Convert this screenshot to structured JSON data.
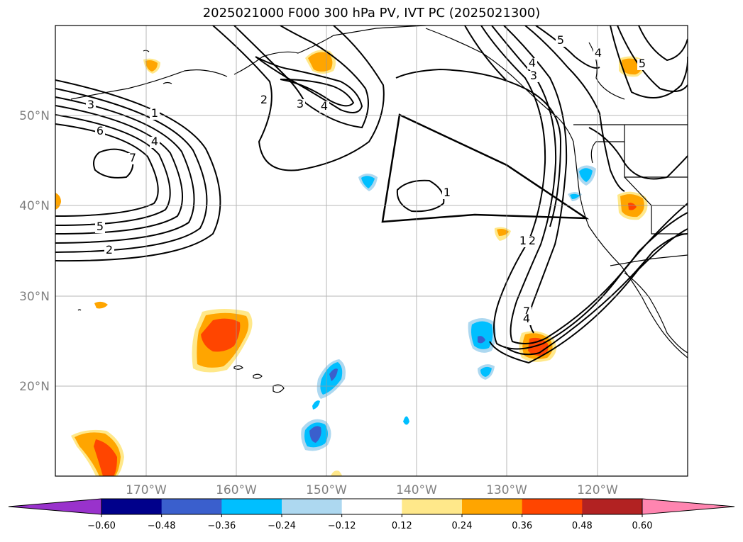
{
  "title": "2025021000 F000 300 hPa PV, IVT PC (2025021300)",
  "map": {
    "lat_labels": [
      "50°N",
      "40°N",
      "30°N",
      "20°N"
    ],
    "lon_labels": [
      "170°W",
      "160°W",
      "150°W",
      "140°W",
      "130°W",
      "120°W"
    ]
  },
  "contour_labels": [
    "3",
    "1",
    "4",
    "6",
    "7",
    "5",
    "2",
    "2",
    "3",
    "4",
    "5",
    "4",
    "4",
    "3",
    "1",
    "1",
    "2",
    "7",
    "4",
    "5"
  ],
  "chart_data": {
    "type": "heatmap",
    "title": "2025021000 F000 300 hPa PV, IVT PC (2025021300)",
    "projection": "cylindrical",
    "lon_range_deg": [
      -180,
      -110
    ],
    "lat_range_deg": [
      10,
      60
    ],
    "lat_ticks": [
      50,
      40,
      30,
      20
    ],
    "lon_ticks": [
      -170,
      -160,
      -150,
      -140,
      -130,
      -120
    ],
    "grid": true,
    "colorbar": {
      "orientation": "horizontal",
      "extend": "both",
      "ticks": [
        "−0.60",
        "−0.48",
        "−0.36",
        "−0.24",
        "−0.12",
        "0.12",
        "0.24",
        "0.36",
        "0.48",
        "0.60"
      ],
      "levels": [
        -0.6,
        -0.48,
        -0.36,
        -0.24,
        -0.12,
        0.12,
        0.24,
        0.36,
        0.48,
        0.6
      ],
      "colors": [
        "#9932cc",
        "#00008b",
        "#3a5fcd",
        "#00bfff",
        "#add8f0",
        "#ffffff",
        "#ffe88a",
        "#ffa500",
        "#ff4500",
        "#b22222",
        "#ff85b0"
      ]
    },
    "ivt_contours": [
      {
        "level": 1,
        "label": "1"
      },
      {
        "level": 2,
        "label": "2"
      },
      {
        "level": 3,
        "label": "3"
      },
      {
        "level": 4,
        "label": "4"
      },
      {
        "level": 5,
        "label": "5"
      },
      {
        "level": 6,
        "label": "6"
      },
      {
        "level": 7,
        "label": "7"
      }
    ],
    "pv_anomalies": [
      {
        "lon": -162,
        "lat": 25.5,
        "value": 0.42
      },
      {
        "lon": -176,
        "lat": 12.5,
        "value": 0.4
      },
      {
        "lon": -126,
        "lat": 24.5,
        "value": 0.4
      },
      {
        "lon": -151,
        "lat": 56.5,
        "value": 0.3
      },
      {
        "lon": -116,
        "lat": 55.5,
        "value": 0.3
      },
      {
        "lon": -116,
        "lat": 40.0,
        "value": 0.32
      },
      {
        "lon": -169,
        "lat": 55.5,
        "value": 0.25
      },
      {
        "lon": -130.5,
        "lat": 37.0,
        "value": 0.26
      },
      {
        "lon": -175,
        "lat": 29.0,
        "value": 0.22
      },
      {
        "lon": -133,
        "lat": 25.5,
        "value": -0.33
      },
      {
        "lon": -150,
        "lat": 20.5,
        "value": -0.3
      },
      {
        "lon": -152,
        "lat": 14.5,
        "value": -0.36
      },
      {
        "lon": -146,
        "lat": 42.5,
        "value": -0.28
      },
      {
        "lon": -121,
        "lat": 43.5,
        "value": -0.28
      },
      {
        "lon": -132,
        "lat": 21.5,
        "value": -0.26
      }
    ],
    "polygon": [
      [
        -142,
        50
      ],
      [
        -130,
        44.5
      ],
      [
        -121.5,
        38.5
      ],
      [
        -139.5,
        38.8
      ],
      [
        -143.7,
        38.1
      ]
    ]
  }
}
